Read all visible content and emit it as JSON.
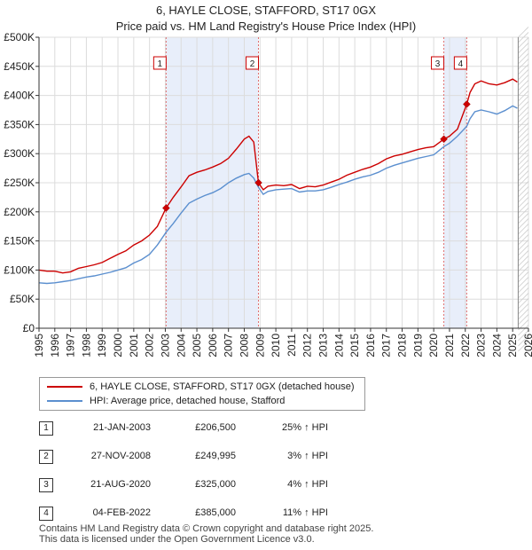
{
  "title_line1": "6, HAYLE CLOSE, STAFFORD, ST17 0GX",
  "title_line2": "Price paid vs. HM Land Registry's House Price Index (HPI)",
  "chart_data": {
    "type": "line",
    "ylim": [
      0,
      500000
    ],
    "xlim": [
      1995,
      2026
    ],
    "y_ticks": [
      {
        "value": 0,
        "label": "£0"
      },
      {
        "value": 50000,
        "label": "£50K"
      },
      {
        "value": 100000,
        "label": "£100K"
      },
      {
        "value": 150000,
        "label": "£150K"
      },
      {
        "value": 200000,
        "label": "£200K"
      },
      {
        "value": 250000,
        "label": "£250K"
      },
      {
        "value": 300000,
        "label": "£300K"
      },
      {
        "value": 350000,
        "label": "£350K"
      },
      {
        "value": 400000,
        "label": "£400K"
      },
      {
        "value": 450000,
        "label": "£450K"
      },
      {
        "value": 500000,
        "label": "£500K"
      }
    ],
    "x_ticks": [
      "1995",
      "1996",
      "1997",
      "1998",
      "1999",
      "2000",
      "2001",
      "2002",
      "2003",
      "2004",
      "2005",
      "2006",
      "2007",
      "2008",
      "2009",
      "2010",
      "2011",
      "2012",
      "2013",
      "2014",
      "2015",
      "2016",
      "2017",
      "2018",
      "2019",
      "2020",
      "2021",
      "2022",
      "2023",
      "2024",
      "2025",
      "2026"
    ],
    "shaded_periods": [
      [
        2003.05,
        2008.9
      ],
      [
        2020.64,
        2022.09
      ]
    ],
    "series": [
      {
        "name": "6, HAYLE CLOSE, STAFFORD, ST17 0GX (detached house)",
        "color": "#cc0000",
        "x": [
          1995.0,
          1995.5,
          1996.0,
          1996.5,
          1997.0,
          1997.5,
          1998.0,
          1998.5,
          1999.0,
          1999.5,
          2000.0,
          2000.5,
          2001.0,
          2001.5,
          2002.0,
          2002.5,
          2003.05,
          2003.5,
          2004.0,
          2004.5,
          2005.0,
          2005.5,
          2006.0,
          2006.5,
          2007.0,
          2007.5,
          2008.0,
          2008.3,
          2008.6,
          2008.9,
          2009.2,
          2009.5,
          2010.0,
          2010.5,
          2011.0,
          2011.5,
          2012.0,
          2012.5,
          2013.0,
          2013.5,
          2014.0,
          2014.5,
          2015.0,
          2015.5,
          2016.0,
          2016.5,
          2017.0,
          2017.5,
          2018.0,
          2018.5,
          2019.0,
          2019.5,
          2020.0,
          2020.64,
          2021.0,
          2021.5,
          2022.09,
          2022.3,
          2022.6,
          2023.0,
          2023.5,
          2024.0,
          2024.5,
          2025.0,
          2025.3
        ],
        "values": [
          100000,
          98000,
          98000,
          95000,
          97000,
          103000,
          106000,
          109000,
          113000,
          120000,
          127000,
          133000,
          143000,
          150000,
          160000,
          175000,
          206500,
          225000,
          243000,
          262000,
          268000,
          272000,
          277000,
          283000,
          292000,
          308000,
          325000,
          330000,
          320000,
          249995,
          238000,
          244000,
          246000,
          245000,
          247000,
          240000,
          244000,
          243000,
          246000,
          251000,
          256000,
          263000,
          268000,
          273000,
          277000,
          283000,
          291000,
          296000,
          299000,
          303000,
          307000,
          310000,
          312000,
          325000,
          330000,
          342000,
          385000,
          405000,
          420000,
          425000,
          420000,
          418000,
          422000,
          428000,
          423000
        ]
      },
      {
        "name": "HPI: Average price, detached house, Stafford",
        "color": "#5b8fcf",
        "x": [
          1995.0,
          1995.5,
          1996.0,
          1996.5,
          1997.0,
          1997.5,
          1998.0,
          1998.5,
          1999.0,
          1999.5,
          2000.0,
          2000.5,
          2001.0,
          2001.5,
          2002.0,
          2002.5,
          2003.05,
          2003.5,
          2004.0,
          2004.5,
          2005.0,
          2005.5,
          2006.0,
          2006.5,
          2007.0,
          2007.5,
          2008.0,
          2008.3,
          2008.6,
          2008.9,
          2009.2,
          2009.5,
          2010.0,
          2010.5,
          2011.0,
          2011.5,
          2012.0,
          2012.5,
          2013.0,
          2013.5,
          2014.0,
          2014.5,
          2015.0,
          2015.5,
          2016.0,
          2016.5,
          2017.0,
          2017.5,
          2018.0,
          2018.5,
          2019.0,
          2019.5,
          2020.0,
          2020.64,
          2021.0,
          2021.5,
          2022.09,
          2022.3,
          2022.6,
          2023.0,
          2023.5,
          2024.0,
          2024.5,
          2025.0,
          2025.3
        ],
        "values": [
          78000,
          77000,
          78000,
          80000,
          82000,
          85000,
          88000,
          90000,
          93000,
          96000,
          100000,
          104000,
          112000,
          118000,
          127000,
          143000,
          165000,
          180000,
          198000,
          215000,
          222000,
          228000,
          233000,
          240000,
          250000,
          258000,
          264000,
          266000,
          258000,
          242000,
          230000,
          235000,
          238000,
          239000,
          240000,
          234000,
          236000,
          236000,
          238000,
          242000,
          247000,
          251000,
          256000,
          260000,
          263000,
          268000,
          275000,
          280000,
          284000,
          288000,
          292000,
          295000,
          298000,
          312000,
          318000,
          330000,
          347000,
          360000,
          372000,
          375000,
          372000,
          368000,
          374000,
          382000,
          378000
        ]
      }
    ],
    "markers": [
      {
        "label": "1",
        "x": 2003.05,
        "y": 206500
      },
      {
        "label": "2",
        "x": 2008.9,
        "y": 249995
      },
      {
        "label": "3",
        "x": 2020.64,
        "y": 325000
      },
      {
        "label": "4",
        "x": 2022.09,
        "y": 385000
      }
    ]
  },
  "legend": {
    "items": [
      {
        "label": "6, HAYLE CLOSE, STAFFORD, ST17 0GX (detached house)",
        "color": "#cc0000"
      },
      {
        "label": "HPI: Average price, detached house, Stafford",
        "color": "#5b8fcf"
      }
    ]
  },
  "transactions": [
    {
      "num": "1",
      "date": "21-JAN-2003",
      "price": "£206,500",
      "hpi": "25% ↑ HPI"
    },
    {
      "num": "2",
      "date": "27-NOV-2008",
      "price": "£249,995",
      "hpi": "3% ↑ HPI"
    },
    {
      "num": "3",
      "date": "21-AUG-2020",
      "price": "£325,000",
      "hpi": "4% ↑ HPI"
    },
    {
      "num": "4",
      "date": "04-FEB-2022",
      "price": "£385,000",
      "hpi": "11% ↑ HPI"
    }
  ],
  "footer": {
    "line1": "Contains HM Land Registry data © Crown copyright and database right 2025.",
    "line2": "This data is licensed under the Open Government Licence v3.0."
  }
}
